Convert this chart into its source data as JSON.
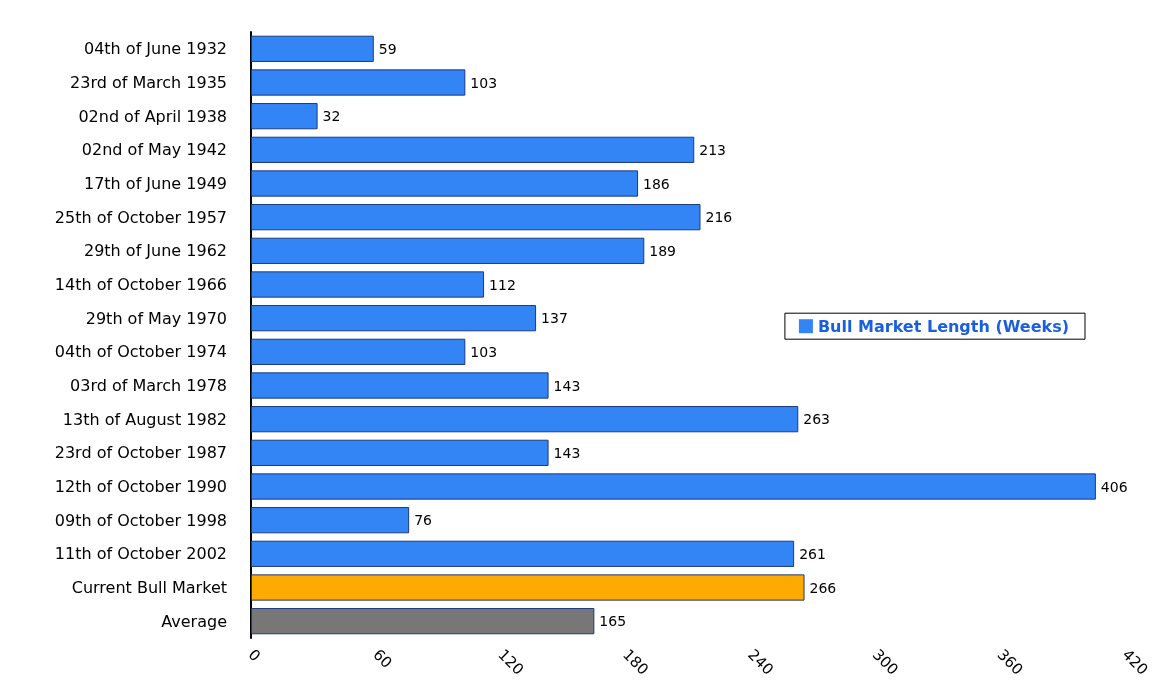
{
  "chart_data": {
    "type": "bar",
    "orientation": "horizontal",
    "categories": [
      "04th of June 1932",
      "23rd of March 1935",
      "02nd of April 1938",
      "02nd of May 1942",
      "17th of June 1949",
      "25th of October 1957",
      "29th of June 1962",
      "14th of October 1966",
      "29th of May 1970",
      "04th of October 1974",
      "03rd of March 1978",
      "13th of August 1982",
      "23rd of October 1987",
      "12th of October 1990",
      "09th of October 1998",
      "11th of October 2002",
      "Current Bull Market",
      "Average"
    ],
    "series": [
      {
        "name": "Bull Market Length (Weeks)",
        "color": "#3385f5",
        "values": [
          59,
          103,
          32,
          213,
          186,
          216,
          189,
          112,
          137,
          103,
          143,
          263,
          143,
          406,
          76,
          261,
          266,
          165
        ],
        "colors": [
          "#3385f5",
          "#3385f5",
          "#3385f5",
          "#3385f5",
          "#3385f5",
          "#3385f5",
          "#3385f5",
          "#3385f5",
          "#3385f5",
          "#3385f5",
          "#3385f5",
          "#3385f5",
          "#3385f5",
          "#3385f5",
          "#3385f5",
          "#3385f5",
          "#ffaa00",
          "#777777"
        ]
      }
    ],
    "xlim": [
      0,
      420
    ],
    "xticks": [
      0,
      60,
      120,
      180,
      240,
      300,
      360,
      420
    ],
    "data_labels": true,
    "grid": false,
    "legend": "right"
  }
}
